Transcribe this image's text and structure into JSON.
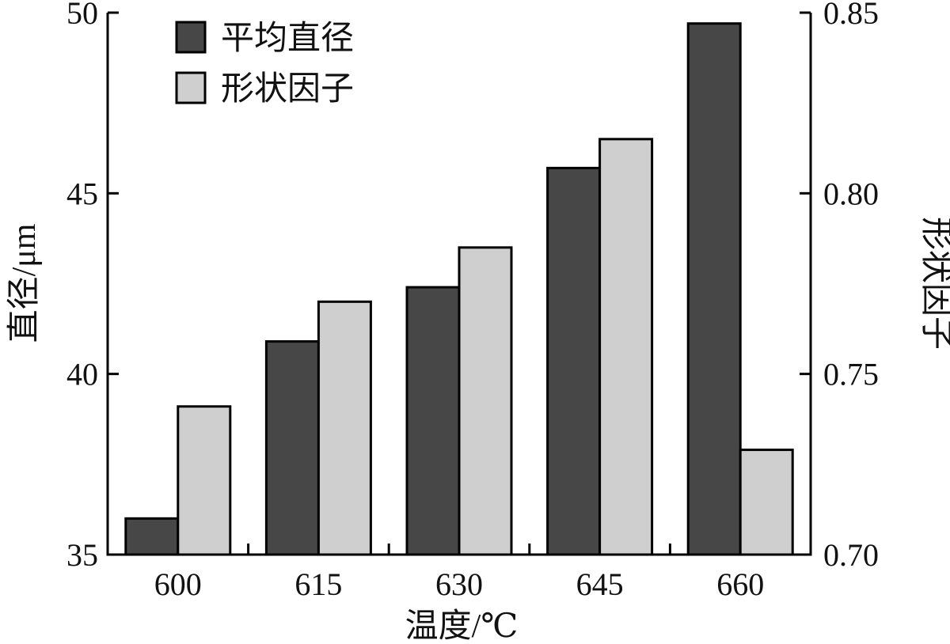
{
  "chart_data": {
    "type": "bar",
    "categories": [
      "600",
      "615",
      "630",
      "645",
      "660"
    ],
    "xlabel": "温度/℃",
    "ylabel_left": "直径/μm",
    "ylabel_right": "形状因子",
    "ylim_left": [
      35,
      50
    ],
    "ylim_right": [
      0.7,
      0.85
    ],
    "yticks_left": [
      "35",
      "40",
      "45",
      "50"
    ],
    "yticks_right": [
      "0.70",
      "0.75",
      "0.80",
      "0.85"
    ],
    "grid": false,
    "legend_position": "top-left",
    "series": [
      {
        "name": "平均直径",
        "axis": "left",
        "color": "#474747",
        "values": [
          36.0,
          40.9,
          42.4,
          45.7,
          49.7
        ]
      },
      {
        "name": "形状因子",
        "axis": "right",
        "color": "#cfcfcf",
        "values": [
          0.741,
          0.77,
          0.785,
          0.815,
          0.729
        ]
      }
    ]
  }
}
